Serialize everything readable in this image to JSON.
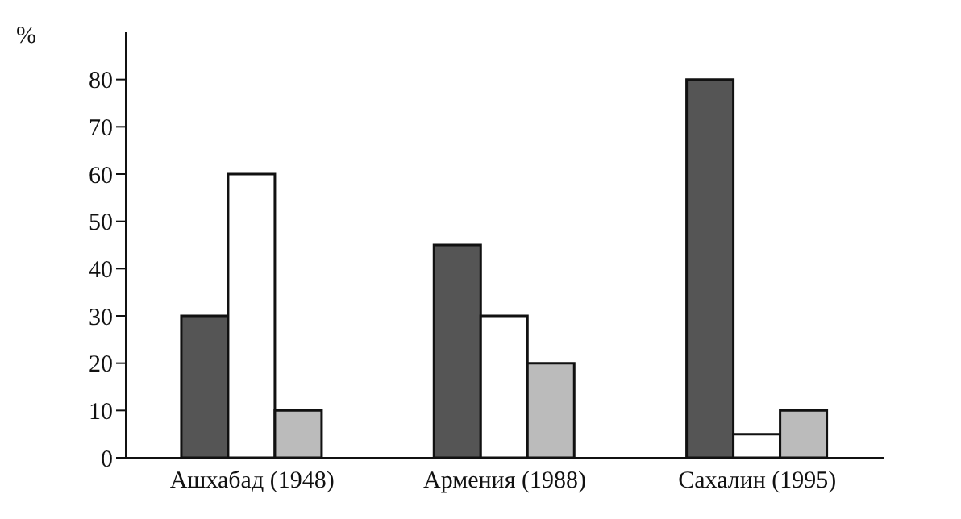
{
  "chart_data": {
    "type": "bar",
    "ylabel": "%",
    "categories": [
      "Ашхабад (1948)",
      "Армения (1988)",
      "Сахалин (1995)"
    ],
    "series": [
      {
        "color": "#555555",
        "values": [
          30,
          45,
          80
        ]
      },
      {
        "color": "#ffffff",
        "values": [
          60,
          30,
          5
        ]
      },
      {
        "color": "#bbbbbb",
        "values": [
          10,
          20,
          10
        ]
      }
    ],
    "ylim": [
      0,
      90
    ],
    "yticks": [
      0,
      10,
      20,
      30,
      40,
      50,
      60,
      70,
      80
    ],
    "grid": false,
    "legend": false
  }
}
